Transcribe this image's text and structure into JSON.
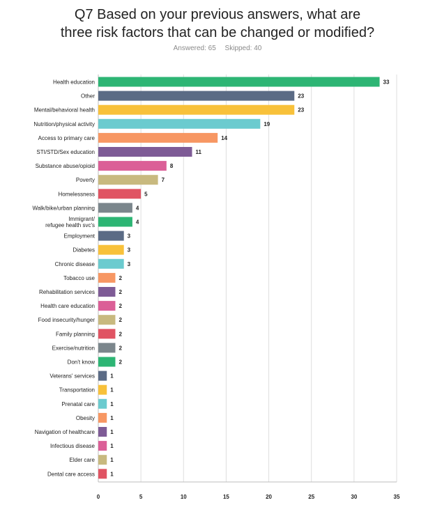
{
  "title_lines": [
    "Q7 Based on your previous answers, what are",
    "three risk factors that can be changed or modified?"
  ],
  "answered_label": "Answered: 65",
  "skipped_label": "Skipped: 40",
  "chart_data": {
    "type": "bar",
    "orientation": "horizontal",
    "categories": [
      "Health education",
      "Other",
      "Mental/behavioral health",
      "Nutrition/physical activity",
      "Access to primary care",
      "STI/STD/Sex education",
      "Substance abuse/opioid",
      "Poverty",
      "Homelessness",
      "Walk/bike/urban planning",
      "Immigrant/\nrefugee health svc's",
      "Employment",
      "Diabetes",
      "Chronic disease",
      "Tobacco use",
      "Rehabilitation services",
      "Health care education",
      "Food insecurity/hunger",
      "Family planning",
      "Exercise/nutrition",
      "Don't know",
      "Veterans' services",
      "Transportation",
      "Prenatal care",
      "Obesity",
      "Navigation of healthcare",
      "Infectious disease",
      "Elder care",
      "Dental care access"
    ],
    "values": [
      33,
      23,
      23,
      19,
      14,
      11,
      8,
      7,
      5,
      4,
      4,
      3,
      3,
      3,
      2,
      2,
      2,
      2,
      2,
      2,
      2,
      1,
      1,
      1,
      1,
      1,
      1,
      1,
      1
    ],
    "colors": [
      "#2DB574",
      "#5B6B85",
      "#F8C13A",
      "#6BCBCF",
      "#F79763",
      "#7E5B96",
      "#DB5F97",
      "#C8B97F",
      "#E05463",
      "#7B868C"
    ],
    "xlim": [
      0,
      35
    ],
    "xticks": [
      0,
      5,
      10,
      15,
      20,
      25,
      30,
      35
    ],
    "grid": true,
    "legend": "none"
  }
}
